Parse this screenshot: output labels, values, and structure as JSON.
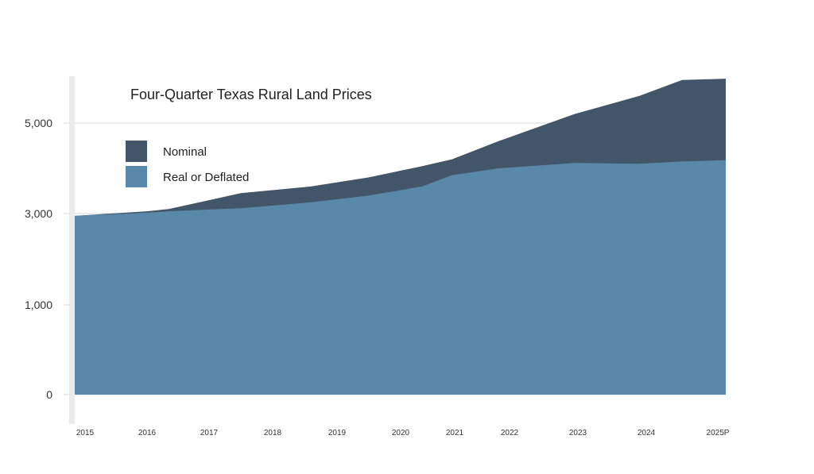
{
  "chart_data": {
    "type": "area",
    "title": "Four-Quarter Texas Rural Land Prices",
    "xlabel": "",
    "ylabel": "",
    "categories": [
      "2015",
      "2016",
      "2017",
      "2018",
      "2019",
      "2020",
      "2021",
      "2022",
      "2023",
      "2024",
      "2025P"
    ],
    "yticks": [
      "0",
      "1,000",
      "3,000",
      "5,000"
    ],
    "ylim": [
      0,
      6000
    ],
    "grid": true,
    "legend_position": "top-left",
    "series": [
      {
        "name": "Nominal",
        "color": "#435568",
        "x": [
          2015,
          2016,
          2016.35,
          2017.5,
          2018.6,
          2019.5,
          2020.4,
          2020.95,
          2021.8,
          2022.95,
          2023.9,
          2024.5,
          2025.0
        ],
        "values": [
          2950,
          3050,
          3100,
          3450,
          3600,
          3800,
          4050,
          4200,
          4600,
          5200,
          5600,
          5950,
          5980
        ]
      },
      {
        "name": "Real or Deflated",
        "color": "#5a88a9",
        "x": [
          2015,
          2016,
          2016.35,
          2017.5,
          2018.6,
          2019.5,
          2020.4,
          2020.95,
          2021.8,
          2022.95,
          2023.9,
          2024.5,
          2025.0
        ],
        "values": [
          2950,
          3020,
          3050,
          3120,
          3250,
          3400,
          3600,
          3850,
          4000,
          4120,
          4100,
          4150,
          4180
        ]
      }
    ]
  }
}
